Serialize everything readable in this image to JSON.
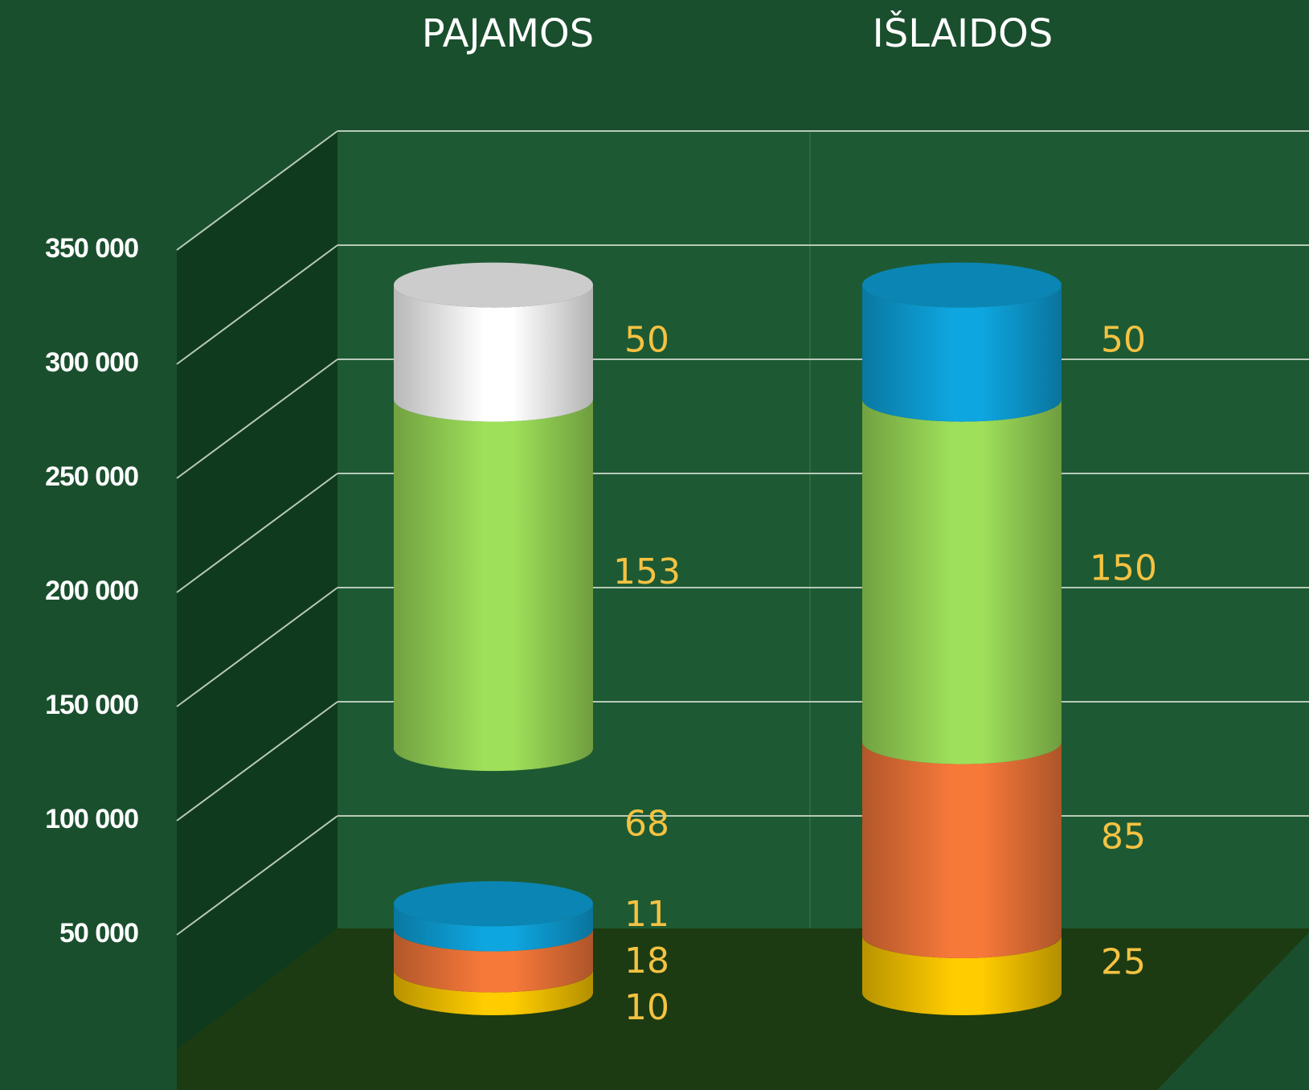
{
  "chart_data": {
    "type": "bar3d",
    "categories": [
      "PAJAMOS",
      "IŠLAIDOS"
    ],
    "stacked": true,
    "series": [
      {
        "colors": [
          "#ffcc00",
          "#ffcc00"
        ],
        "values": [
          10000,
          25000
        ],
        "value_labels": [
          "10",
          "25"
        ]
      },
      {
        "colors": [
          "#f7793a",
          "#f7793a"
        ],
        "values": [
          18000,
          85000
        ],
        "value_labels": [
          "18",
          "85"
        ]
      },
      {
        "colors": [
          "#0ea6e0",
          "#9ee05a"
        ],
        "values": [
          11000,
          150000
        ],
        "value_labels": [
          "11",
          "150"
        ]
      },
      {
        "colors": [
          "none",
          "#0ea6e0"
        ],
        "values": [
          68000,
          50000
        ],
        "value_labels": [
          "68",
          "50"
        ]
      },
      {
        "colors": [
          "#9ee05a",
          "none"
        ],
        "values": [
          153000,
          null
        ],
        "value_labels": [
          "153",
          null
        ]
      },
      {
        "colors": [
          "#ffffff",
          "none"
        ],
        "values": [
          50000,
          null
        ],
        "value_labels": [
          "50",
          null
        ]
      }
    ],
    "ylim": [
      0,
      350000
    ],
    "yticks": [
      {
        "value": 50000,
        "label": "50 000"
      },
      {
        "value": 100000,
        "label": "100 000"
      },
      {
        "value": 150000,
        "label": "150 000"
      },
      {
        "value": 200000,
        "label": "200 000"
      },
      {
        "value": 250000,
        "label": "250 000"
      },
      {
        "value": 300000,
        "label": "300 000"
      },
      {
        "value": 350000,
        "label": "350 000"
      }
    ],
    "grid": true,
    "label_color": "#f5c242"
  }
}
